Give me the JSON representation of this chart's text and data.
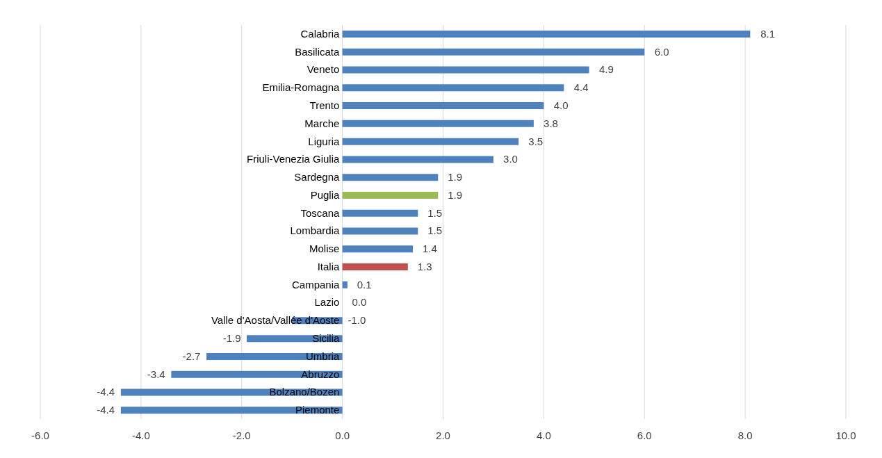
{
  "chart_data": {
    "type": "bar",
    "orientation": "horizontal",
    "categories": [
      "Calabria",
      "Basilicata",
      "Veneto",
      "Emilia-Romagna",
      "Trento",
      "Marche",
      "Liguria",
      "Friuli-Venezia Giulia",
      "Sardegna",
      "Puglia",
      "Toscana",
      "Lombardia",
      "Molise",
      "Italia",
      "Campania",
      "Lazio",
      "Valle d'Aosta/Vallée d'Aoste",
      "Sicilia",
      "Umbria",
      "Abruzzo",
      "Bolzano/Bozen",
      "Piemonte"
    ],
    "values": [
      8.1,
      6.0,
      4.9,
      4.4,
      4.0,
      3.8,
      3.5,
      3.0,
      1.9,
      1.9,
      1.5,
      1.5,
      1.4,
      1.3,
      0.1,
      0.0,
      -1.0,
      -1.9,
      -2.7,
      -3.4,
      -4.4,
      -4.4
    ],
    "colors": [
      "#4f81bd",
      "#4f81bd",
      "#4f81bd",
      "#4f81bd",
      "#4f81bd",
      "#4f81bd",
      "#4f81bd",
      "#4f81bd",
      "#4f81bd",
      "#9bbb59",
      "#4f81bd",
      "#4f81bd",
      "#4f81bd",
      "#c0504d",
      "#4f81bd",
      "#4f81bd",
      "#4f81bd",
      "#4f81bd",
      "#4f81bd",
      "#4f81bd",
      "#4f81bd",
      "#4f81bd"
    ],
    "value_labels": [
      "8.1",
      "6.0",
      "4.9",
      "4.4",
      "4.0",
      "3.8",
      "3.5",
      "3.0",
      "1.9",
      "1.9",
      "1.5",
      "1.5",
      "1.4",
      "1.3",
      "0.1",
      "0.0",
      "-1.0",
      "-1.9",
      "-2.7",
      "-3.4",
      "-4.4",
      "-4.4"
    ],
    "xlim": [
      -6,
      10
    ],
    "xticks": [
      {
        "value": -6,
        "label": "-6.0"
      },
      {
        "value": -4,
        "label": "-4.0"
      },
      {
        "value": -2,
        "label": "-2.0"
      },
      {
        "value": 0,
        "label": "0.0"
      },
      {
        "value": 2,
        "label": "2.0"
      },
      {
        "value": 4,
        "label": "4.0"
      },
      {
        "value": 6,
        "label": "6.0"
      },
      {
        "value": 8,
        "label": "8.0"
      },
      {
        "value": 10,
        "label": "10.0"
      }
    ],
    "grid": "x"
  }
}
